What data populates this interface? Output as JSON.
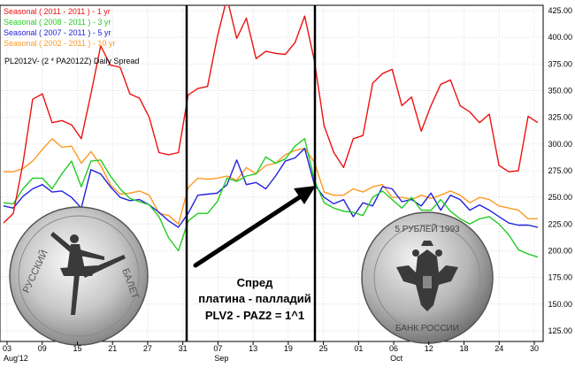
{
  "chart_data": {
    "type": "line",
    "title": "PL2012V- (2 * PA2012Z) Daily Spread",
    "legend_position": "top-left",
    "y_ticks": [
      "425.00",
      "400.00",
      "375.00",
      "350.00",
      "325.00",
      "300.00",
      "275.00",
      "250.00",
      "225.00",
      "200.00",
      "175.00",
      "150.00",
      "125.00"
    ],
    "ylim": [
      115,
      430
    ],
    "grid": true,
    "x_day_labels": [
      "03",
      "09",
      "15",
      "21",
      "27",
      "31",
      "07",
      "13",
      "19",
      "25",
      "01",
      "06",
      "12",
      "18",
      "24",
      "30"
    ],
    "x_month_labels": [
      {
        "label": "Aug'12",
        "at": "03"
      },
      {
        "label": "Sep",
        "at": "07"
      },
      {
        "label": "Oct",
        "at": "06"
      }
    ],
    "series": [
      {
        "name": "Seasonal ( 2011 - 2011 ) - 1 yr",
        "color": "#ee1111",
        "values": [
          226,
          235,
          282,
          342,
          347,
          320,
          322,
          318,
          305,
          347,
          392,
          374,
          372,
          347,
          343,
          325,
          292,
          290,
          292,
          346,
          352,
          354,
          400,
          437,
          399,
          418,
          380,
          387,
          385,
          384,
          395,
          420,
          378,
          317,
          292,
          278,
          305,
          308,
          357,
          366,
          370,
          336,
          344,
          312,
          336,
          356,
          360,
          336,
          330,
          320,
          328,
          280,
          274,
          275,
          326,
          320
        ]
      },
      {
        "name": "Seasonal ( 2008 - 2011 ) - 3 yr",
        "color": "#22cc22",
        "values": [
          245,
          244,
          258,
          268,
          268,
          258,
          272,
          284,
          260,
          284,
          285,
          270,
          258,
          249,
          246,
          243,
          232,
          212,
          200,
          228,
          235,
          235,
          246,
          268,
          265,
          270,
          272,
          288,
          282,
          286,
          298,
          305,
          266,
          245,
          240,
          237,
          236,
          233,
          250,
          256,
          248,
          240,
          250,
          238,
          238,
          248,
          237,
          230,
          225,
          230,
          232,
          225,
          215,
          201,
          197,
          194
        ]
      },
      {
        "name": "Seasonal ( 2007 - 2011 ) - 5 yr",
        "color": "#2222dd",
        "values": [
          242,
          240,
          251,
          258,
          262,
          255,
          256,
          250,
          240,
          276,
          272,
          260,
          250,
          247,
          248,
          243,
          236,
          228,
          222,
          235,
          252,
          253,
          254,
          262,
          285,
          262,
          264,
          258,
          270,
          284,
          287,
          296,
          262,
          250,
          244,
          248,
          232,
          245,
          242,
          260,
          258,
          246,
          248,
          242,
          254,
          238,
          252,
          248,
          238,
          243,
          238,
          232,
          226,
          224,
          224,
          222
        ]
      },
      {
        "name": "Seasonal ( 2002 - 2011 ) - 10 yr",
        "color": "#ff9922",
        "values": [
          274,
          274,
          277,
          284,
          295,
          305,
          297,
          298,
          282,
          293,
          280,
          262,
          253,
          254,
          256,
          252,
          235,
          233,
          225,
          259,
          268,
          267,
          268,
          270,
          266,
          278,
          272,
          280,
          282,
          290,
          294,
          296,
          283,
          255,
          252,
          252,
          258,
          255,
          260,
          262,
          250,
          250,
          248,
          252,
          249,
          252,
          256,
          252,
          245,
          250,
          248,
          242,
          240,
          238,
          230,
          230
        ]
      }
    ],
    "annotation_lines": [
      "Спред",
      "платина - палладий",
      "PLV2 - PAZ2 = 1^1"
    ],
    "left_image": "ballerina-coin",
    "right_image": "russian-eagle-coin",
    "right_coin_legend": [
      "5 РУБЛЕЙ 1993",
      "БАНК РОССИИ"
    ]
  }
}
